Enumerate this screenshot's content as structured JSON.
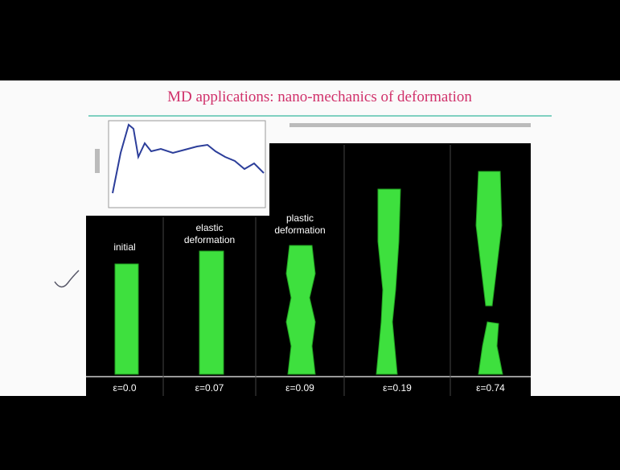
{
  "slide": {
    "title": "MD applications: nano-mechanics of deformation",
    "panels": [
      {
        "label": "initial",
        "strain": "ε=0.0"
      },
      {
        "label": "elastic deformation",
        "strain": "ε=0.07"
      },
      {
        "label": "plastic deformation",
        "strain": "ε=0.09"
      },
      {
        "strain": "ε=0.19"
      },
      {
        "strain": "ε=0.74"
      }
    ]
  }
}
